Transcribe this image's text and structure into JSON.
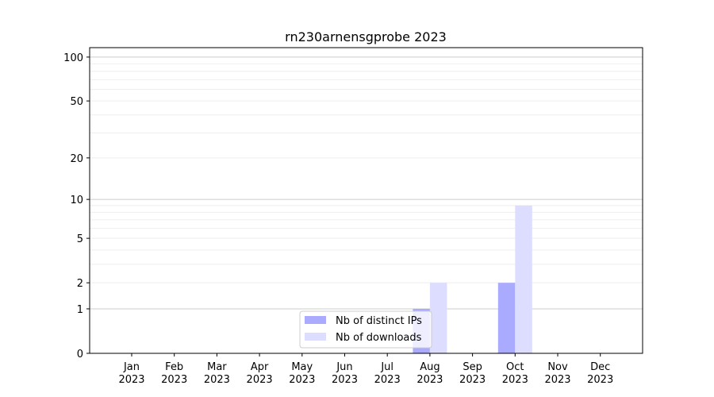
{
  "chart_data": {
    "type": "bar",
    "title": "rn230arnensgprobe 2023",
    "xlabel": "",
    "ylabel": "",
    "yscale": "log(1+y)",
    "ylim": [
      0,
      116
    ],
    "yticks": [
      0,
      1,
      2,
      5,
      10,
      20,
      50,
      100
    ],
    "ytick_labels": [
      "0",
      "1",
      "2",
      "5",
      "10",
      "20",
      "50",
      "100"
    ],
    "grid": true,
    "categories": [
      "Jan\n2023",
      "Feb\n2023",
      "Mar\n2023",
      "Apr\n2023",
      "May\n2023",
      "Jun\n2023",
      "Jul\n2023",
      "Aug\n2023",
      "Sep\n2023",
      "Oct\n2023",
      "Nov\n2023",
      "Dec\n2023"
    ],
    "series": [
      {
        "name": "Nb of distinct IPs",
        "color": "#aaaaff",
        "values": [
          0,
          0,
          0,
          0,
          0,
          0,
          0,
          1,
          0,
          2,
          0,
          0
        ]
      },
      {
        "name": "Nb of downloads",
        "color": "#ddddff",
        "values": [
          0,
          0,
          0,
          0,
          0,
          0,
          0,
          2,
          0,
          9,
          0,
          0
        ]
      }
    ],
    "legend_placement": "lower-center"
  }
}
